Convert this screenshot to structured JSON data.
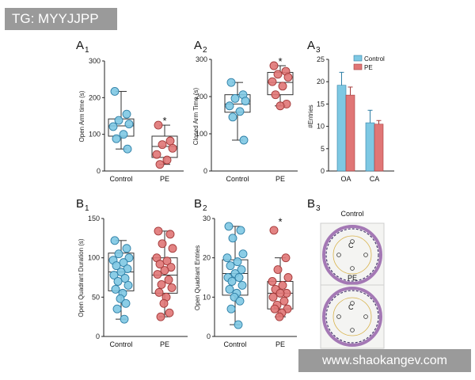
{
  "banners": {
    "top": "TG: MYYJJPP",
    "bottom": "www.shaokangev.com"
  },
  "colors": {
    "control": "#7ec8e3",
    "pe": "#e07676",
    "control_edge": "#2f7fa6",
    "pe_edge": "#a33a3a",
    "maze_ring": "#8a4fa0"
  },
  "chart_data": [
    {
      "id": "A1",
      "type": "box-scatter",
      "panel_label": "A",
      "panel_sub": "1",
      "ylabel": "Open Arm time (s)",
      "ylim": [
        0,
        300
      ],
      "yticks": [
        0,
        100,
        200,
        300
      ],
      "categories": [
        "Control",
        "PE"
      ],
      "series": [
        {
          "name": "Control",
          "values": [
            217,
            155,
            138,
            128,
            121,
            100,
            88,
            60
          ],
          "box": {
            "q1": 95,
            "median": 123,
            "q3": 142,
            "min": 60,
            "max": 217
          }
        },
        {
          "name": "PE",
          "values": [
            125,
            82,
            72,
            62,
            45,
            30,
            18
          ],
          "box": {
            "q1": 37,
            "median": 67,
            "q3": 95,
            "min": 18,
            "max": 125
          }
        }
      ],
      "annotations": [
        {
          "text": "*",
          "category": "PE",
          "y": 140
        }
      ]
    },
    {
      "id": "A2",
      "type": "box-scatter",
      "panel_label": "A",
      "panel_sub": "2",
      "ylabel": "Closed Arm Time (s)",
      "ylim": [
        0,
        300
      ],
      "yticks": [
        0,
        100,
        200,
        300
      ],
      "categories": [
        "Control",
        "PE"
      ],
      "series": [
        {
          "name": "Control",
          "values": [
            238,
            205,
            195,
            188,
            175,
            160,
            145,
            83
          ],
          "box": {
            "q1": 158,
            "median": 180,
            "q3": 205,
            "min": 83,
            "max": 238
          }
        },
        {
          "name": "PE",
          "values": [
            283,
            268,
            260,
            252,
            240,
            228,
            205,
            180,
            175
          ],
          "box": {
            "q1": 205,
            "median": 238,
            "q3": 265,
            "min": 175,
            "max": 283
          }
        }
      ],
      "annotations": [
        {
          "text": "*",
          "category": "PE",
          "y": 298
        }
      ]
    },
    {
      "id": "A3",
      "type": "bar",
      "panel_label": "A",
      "panel_sub": "3",
      "ylabel": "#Entries",
      "ylim": [
        0,
        25
      ],
      "yticks": [
        0,
        5,
        10,
        15,
        20,
        25
      ],
      "categories": [
        "OA",
        "CA"
      ],
      "legend": "top-right",
      "series": [
        {
          "name": "Control",
          "values": [
            19.2,
            10.8
          ],
          "errors": [
            2.9,
            2.8
          ]
        },
        {
          "name": "PE",
          "values": [
            17.0,
            10.5
          ],
          "errors": [
            1.8,
            0.8
          ]
        }
      ]
    },
    {
      "id": "B1",
      "type": "box-scatter",
      "panel_label": "B",
      "panel_sub": "1",
      "ylabel": "Open Quadrant Duration (s)",
      "ylim": [
        0,
        150
      ],
      "yticks": [
        0,
        50,
        100,
        150
      ],
      "categories": [
        "Control",
        "PE"
      ],
      "series": [
        {
          "name": "Control",
          "values": [
            122,
            112,
            105,
            100,
            97,
            94,
            90,
            86,
            82,
            78,
            74,
            70,
            65,
            60,
            55,
            48,
            42,
            35,
            22
          ],
          "box": {
            "q1": 58,
            "median": 82,
            "q3": 106,
            "min": 22,
            "max": 122
          }
        },
        {
          "name": "PE",
          "values": [
            134,
            130,
            118,
            112,
            100,
            96,
            92,
            88,
            84,
            79,
            72,
            66,
            62,
            56,
            50,
            42,
            30,
            25
          ],
          "box": {
            "q1": 55,
            "median": 78,
            "q3": 100,
            "min": 25,
            "max": 134
          }
        }
      ]
    },
    {
      "id": "B2",
      "type": "box-scatter",
      "panel_label": "B",
      "panel_sub": "2",
      "ylabel": "Open Quadrant Entries",
      "ylim": [
        0,
        30
      ],
      "yticks": [
        0,
        10,
        20,
        30
      ],
      "categories": [
        "Control",
        "PE"
      ],
      "series": [
        {
          "name": "Control",
          "values": [
            28,
            27,
            25,
            21,
            20,
            19,
            18,
            17,
            16,
            15,
            15,
            14,
            13,
            12,
            11,
            10,
            9,
            7,
            3
          ],
          "box": {
            "q1": 10.5,
            "median": 16,
            "q3": 19.5,
            "min": 3,
            "max": 28
          }
        },
        {
          "name": "PE",
          "values": [
            27,
            20,
            17,
            15,
            14,
            13,
            12,
            11,
            11,
            10,
            9,
            8,
            7,
            7,
            6,
            5
          ],
          "box": {
            "q1": 7,
            "median": 11,
            "q3": 14,
            "min": 5,
            "max": 20
          }
        }
      ],
      "annotations": [
        {
          "text": "*",
          "category": "PE",
          "y": 29.5
        }
      ]
    },
    {
      "id": "B3",
      "type": "image-panel",
      "panel_label": "B",
      "panel_sub": "3",
      "items": [
        {
          "label": "Control",
          "center_label": "C"
        },
        {
          "label": "PE",
          "center_label": "C"
        }
      ]
    }
  ]
}
